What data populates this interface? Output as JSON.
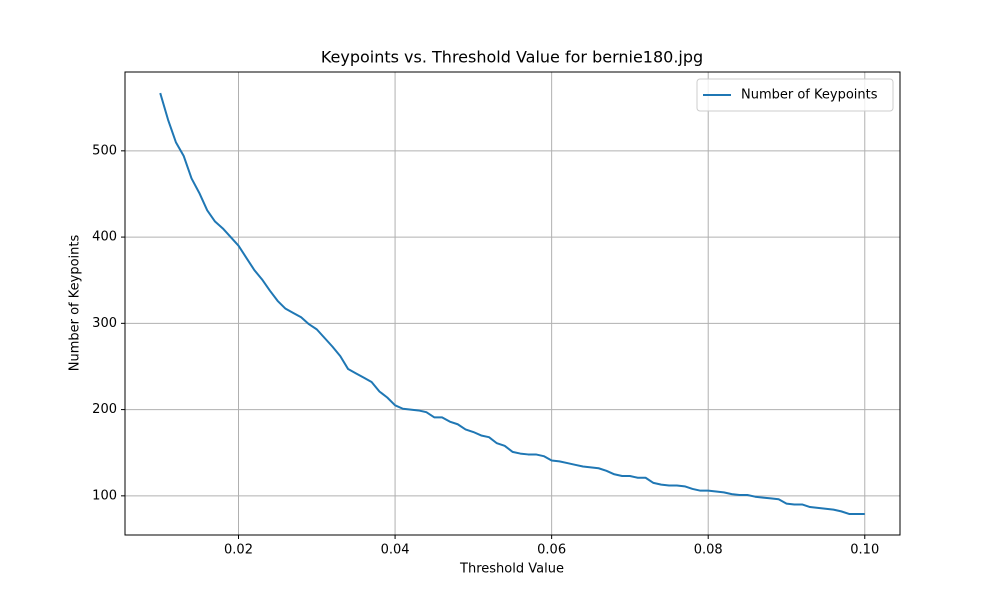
{
  "chart_data": {
    "type": "line",
    "title": "Keypoints vs. Threshold Value for bernie180.jpg",
    "x_label": "Threshold Value",
    "y_label": "Number of Keypoints",
    "x": [
      0.01,
      0.011,
      0.012,
      0.013,
      0.014,
      0.015,
      0.016,
      0.017,
      0.018,
      0.019,
      0.02,
      0.021,
      0.022,
      0.023,
      0.024,
      0.025,
      0.026,
      0.027,
      0.028,
      0.029,
      0.03,
      0.031,
      0.032,
      0.033,
      0.034,
      0.035,
      0.036,
      0.037,
      0.038,
      0.039,
      0.04,
      0.041,
      0.042,
      0.043,
      0.044,
      0.045,
      0.046,
      0.047,
      0.048,
      0.049,
      0.05,
      0.051,
      0.052,
      0.053,
      0.054,
      0.055,
      0.056,
      0.057,
      0.058,
      0.059,
      0.06,
      0.061,
      0.062,
      0.063,
      0.064,
      0.065,
      0.066,
      0.067,
      0.068,
      0.069,
      0.07,
      0.071,
      0.072,
      0.073,
      0.074,
      0.075,
      0.076,
      0.077,
      0.078,
      0.079,
      0.08,
      0.081,
      0.082,
      0.083,
      0.084,
      0.085,
      0.086,
      0.087,
      0.088,
      0.089,
      0.09,
      0.091,
      0.092,
      0.093,
      0.094,
      0.095,
      0.096,
      0.097,
      0.098,
      0.099,
      0.1
    ],
    "series": [
      {
        "name": "Number of Keypoints",
        "color": "#1f77b4",
        "values": [
          567,
          536,
          510,
          494,
          468,
          451,
          431,
          418,
          410,
          400,
          390,
          376,
          362,
          351,
          338,
          326,
          317,
          312,
          307,
          299,
          293,
          283,
          273,
          262,
          247,
          242,
          237,
          232,
          221,
          214,
          205,
          201,
          200,
          199,
          197,
          191,
          191,
          186,
          183,
          177,
          174,
          170,
          168,
          161,
          158,
          151,
          149,
          148,
          148,
          146,
          141,
          140,
          138,
          136,
          134,
          133,
          132,
          129,
          125,
          123,
          123,
          121,
          121,
          115,
          113,
          112,
          112,
          111,
          108,
          106,
          106,
          105,
          104,
          102,
          101,
          101,
          99,
          98,
          97,
          96,
          91,
          90,
          90,
          87,
          86,
          85,
          84,
          82,
          79,
          79,
          79
        ]
      }
    ],
    "xlim": [
      0.0055,
      0.1045
    ],
    "ylim": [
      54.6,
      591.4
    ],
    "xticks": [
      0.02,
      0.04,
      0.06,
      0.08,
      {
        "value": 0.1,
        "label": "0.10"
      }
    ],
    "yticks": [
      100,
      200,
      300,
      400,
      500
    ],
    "grid": true,
    "legend": "upper-right"
  }
}
